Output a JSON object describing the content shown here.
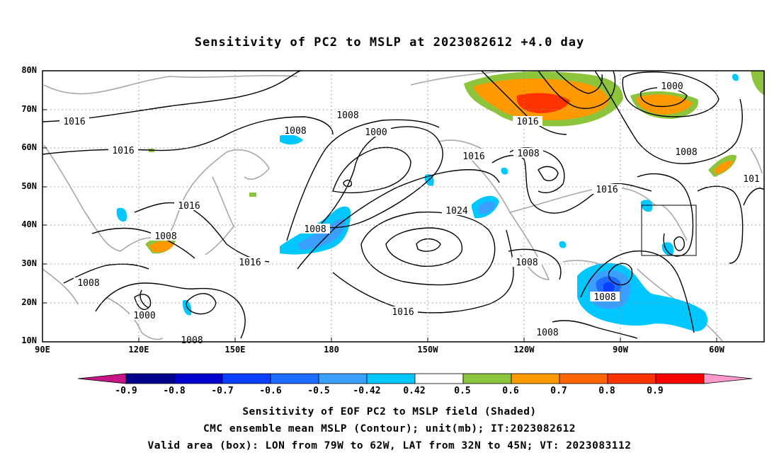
{
  "title": "Sensitivity of PC2 to MSLP at 2023082612 +4.0 day",
  "lat_labels": [
    "80N",
    "70N",
    "60N",
    "50N",
    "40N",
    "30N",
    "20N",
    "10N"
  ],
  "lon_labels": [
    "90E",
    "120E",
    "150E",
    "180",
    "150W",
    "120W",
    "90W",
    "60W"
  ],
  "contour_labels": [
    "1016",
    "1016",
    "1008",
    "1008",
    "1000",
    "1008",
    "1016",
    "1016",
    "1008",
    "1008",
    "1016",
    "1016",
    "1024",
    "1008",
    "1008",
    "1016",
    "1000",
    "1008",
    "1008",
    "1016",
    "1000",
    "1008",
    "1008",
    "101"
  ],
  "colorbar": {
    "labels": [
      "-0.9",
      "-0.8",
      "-0.7",
      "-0.6",
      "-0.5",
      "-0.42",
      "0.42",
      "0.5",
      "0.6",
      "0.7",
      "0.8",
      "0.9"
    ],
    "colors": [
      "#c71585",
      "#00008b",
      "#0000cd",
      "#0a3fff",
      "#1e6cff",
      "#3aa0ff",
      "#00c8ff",
      "#ffffff",
      "#8cc43c",
      "#ff9900",
      "#ff6600",
      "#ff3300",
      "#ff0000",
      "#ff99cc"
    ]
  },
  "validation_box": {
    "lon_from": "79W",
    "lon_to": "62W",
    "lat_from": "32N",
    "lat_to": "45N"
  },
  "captions": [
    "Sensitivity of EOF PC2 to MSLP field (Shaded)",
    "CMC ensemble mean MSLP (Contour); unit(mb); IT:2023082612",
    "Valid area (box): LON from 79W to 62W, LAT from 32N to 45N; VT: 2023083112"
  ]
}
